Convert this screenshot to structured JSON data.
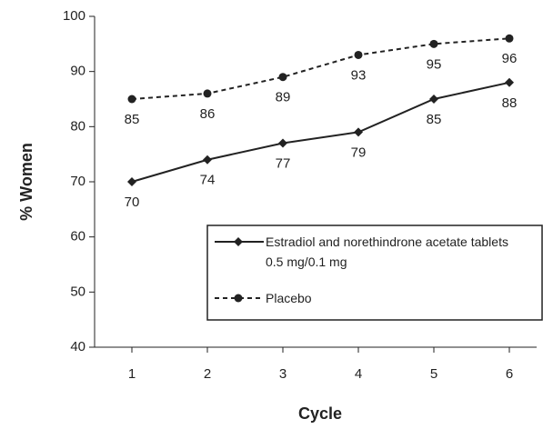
{
  "chart_data": {
    "type": "line",
    "x_label": "Cycle",
    "y_label": "% Women",
    "categories": [
      "1",
      "2",
      "3",
      "4",
      "5",
      "6"
    ],
    "ylim": [
      40,
      100
    ],
    "yticks": [
      40,
      50,
      60,
      70,
      80,
      90,
      100
    ],
    "series": [
      {
        "name": "Estradiol and norethindrone acetate tablets 0.5 mg/0.1 mg",
        "color": "#222222",
        "marker": "diamond",
        "dash": false,
        "values": [
          70,
          74,
          77,
          79,
          85,
          88
        ]
      },
      {
        "name": "Placebo",
        "color": "#222222",
        "marker": "circle",
        "dash": true,
        "values": [
          85,
          86,
          89,
          93,
          95,
          96
        ]
      }
    ]
  }
}
